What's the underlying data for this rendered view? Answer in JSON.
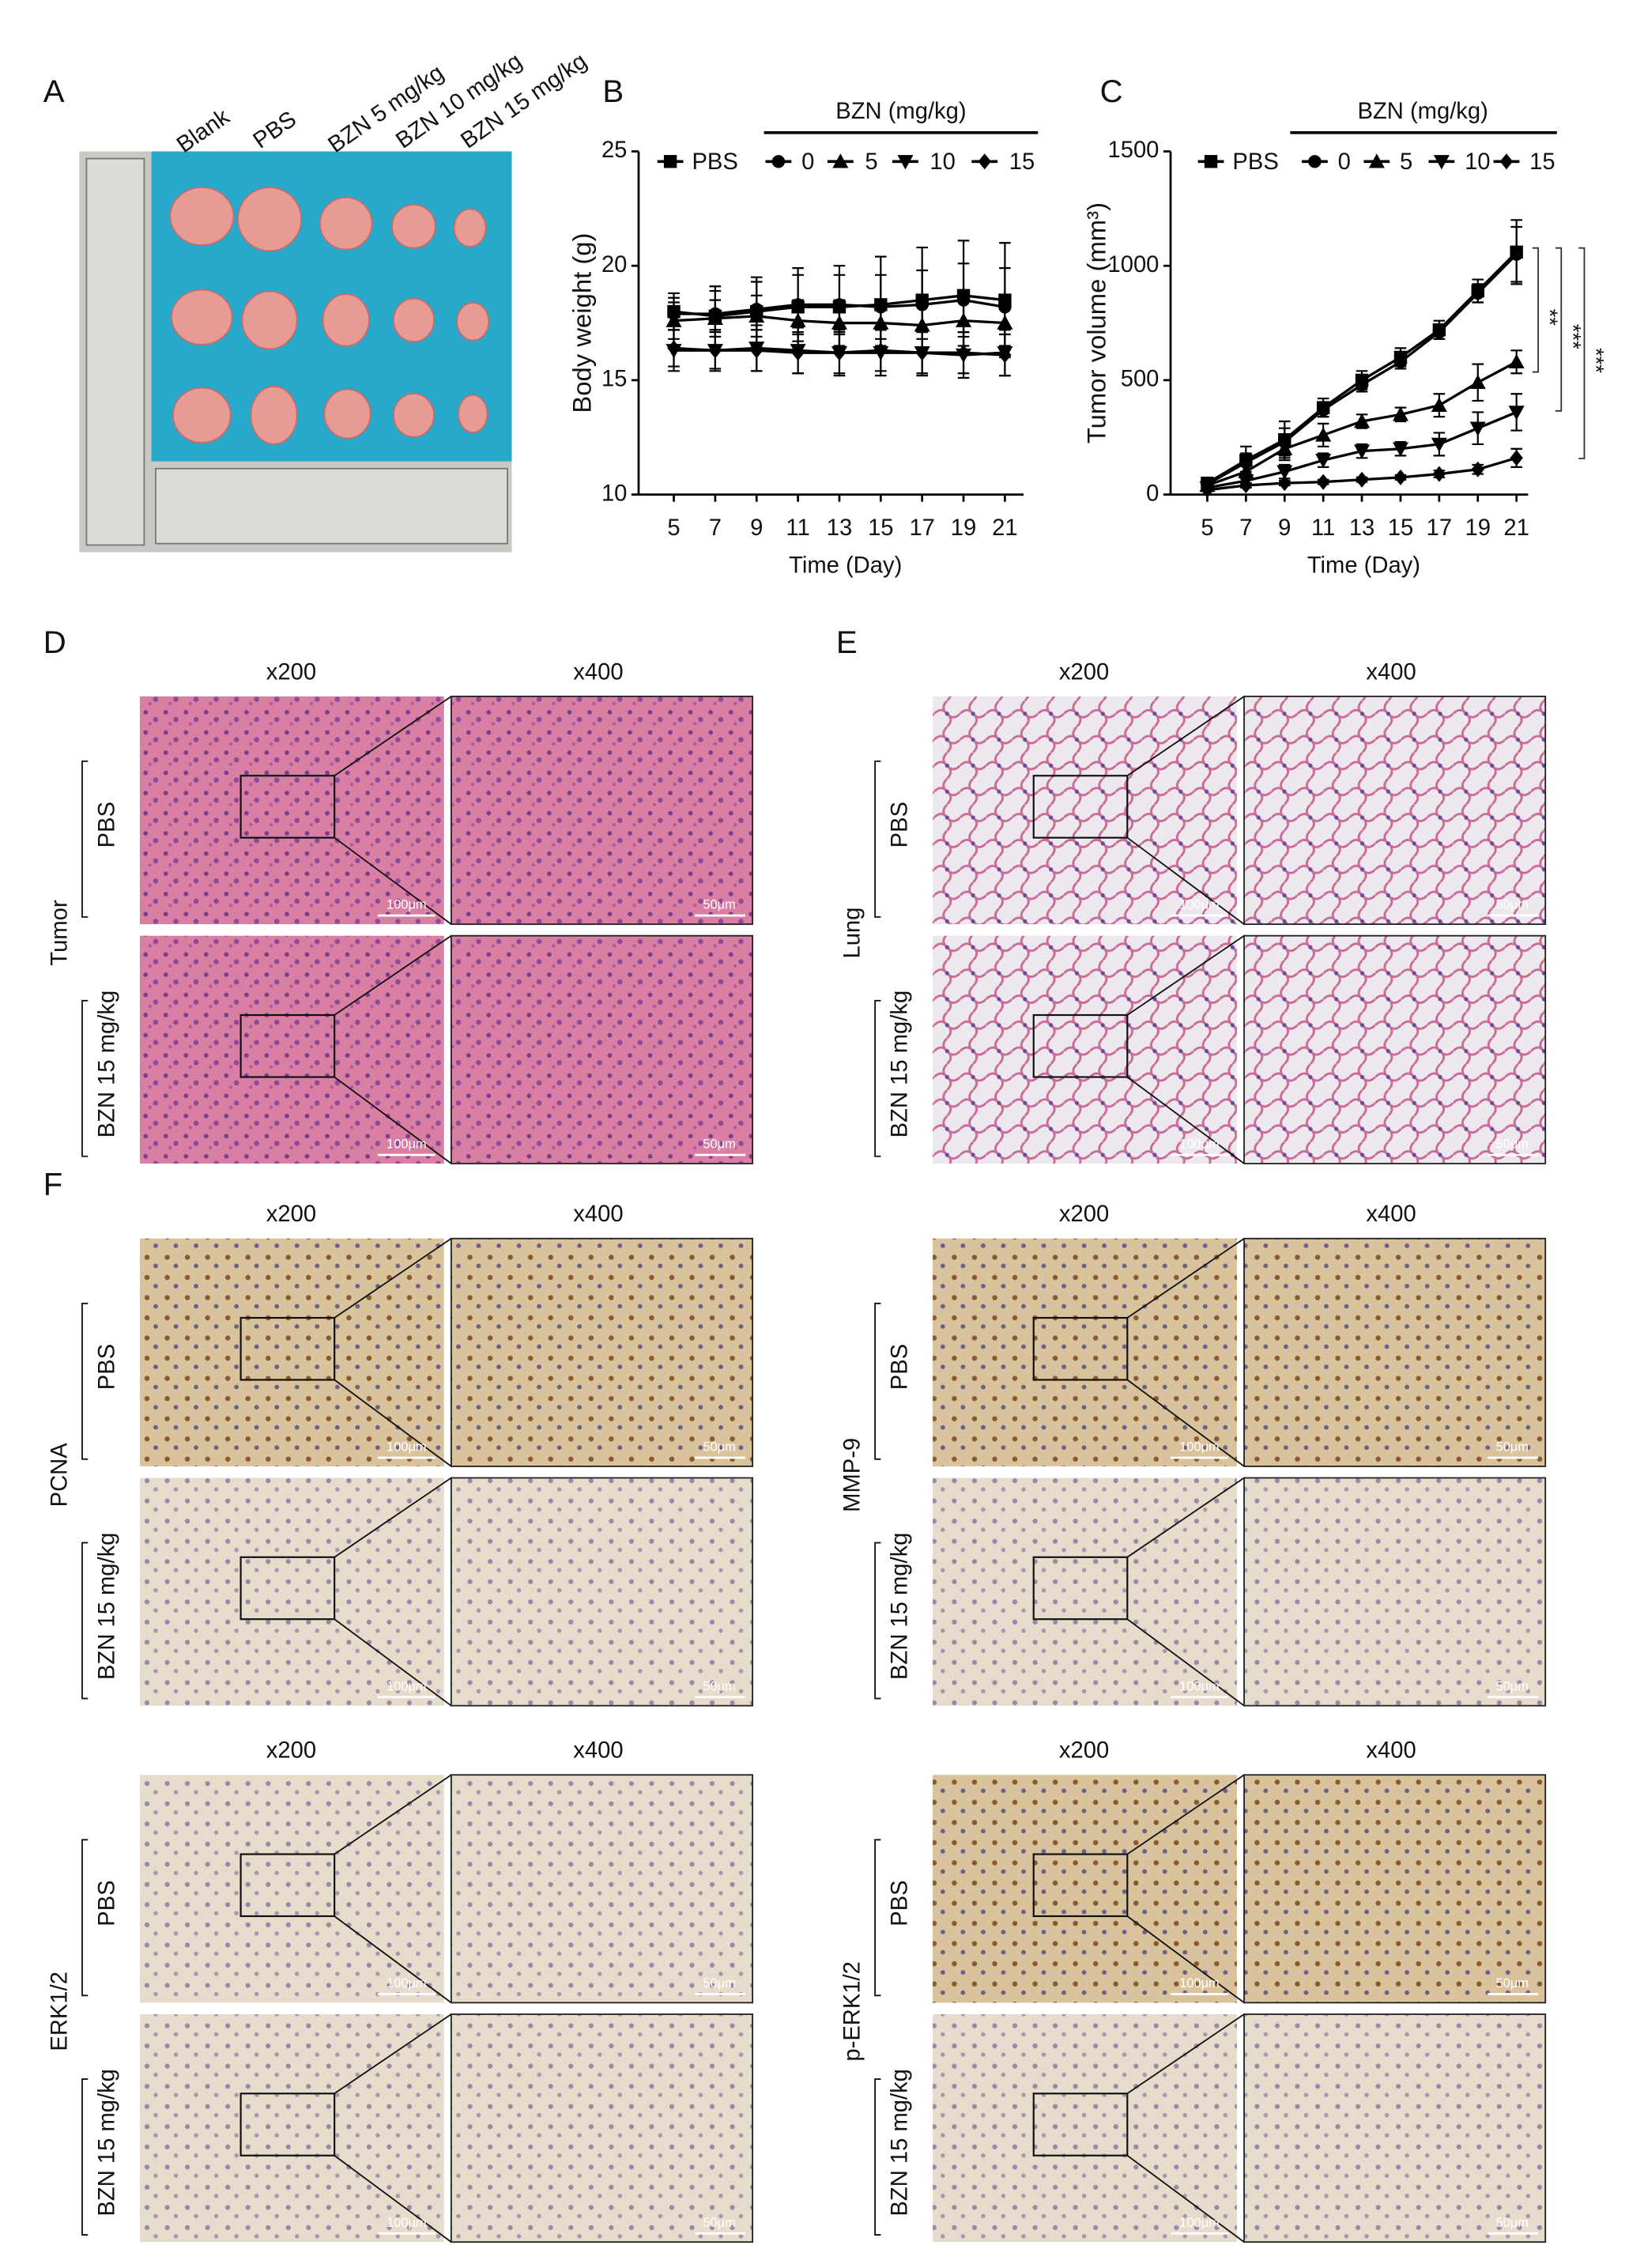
{
  "panel_a": {
    "panel_label": "A",
    "lanes": [
      "Blank",
      "PBS",
      "BZN 5 mg/kg",
      "BZN 10 mg/kg",
      "BZN 15 mg/kg"
    ]
  },
  "chart_data": [
    {
      "type": "line",
      "panel_label": "B",
      "annotation": "BZN (mg/kg)",
      "x_label": "Time (Day)",
      "y_label": "Body weight (g)",
      "x": [
        5,
        7,
        9,
        11,
        13,
        15,
        17,
        19,
        21
      ],
      "xlim": [
        3.3,
        21.9
      ],
      "xticks": [
        5,
        7,
        9,
        11,
        13,
        15,
        17,
        19,
        21
      ],
      "ylim": [
        10,
        25
      ],
      "yticks": [
        10,
        15,
        20,
        25
      ],
      "series": [
        {
          "name": "PBS",
          "marker": "square",
          "color": "#000000",
          "values": [
            18.0,
            17.8,
            18.0,
            18.2,
            18.2,
            18.3,
            18.5,
            18.7,
            18.5
          ],
          "errors": [
            0.8,
            1.3,
            1.5,
            1.7,
            1.8,
            2.1,
            2.3,
            2.4,
            2.5
          ]
        },
        {
          "name": "0",
          "marker": "circle",
          "color": "#000000",
          "values": [
            17.9,
            17.9,
            18.1,
            18.3,
            18.3,
            18.2,
            18.3,
            18.5,
            18.2
          ],
          "errors": [
            0.7,
            1.0,
            1.2,
            1.3,
            1.3,
            1.4,
            1.5,
            1.6,
            1.7
          ]
        },
        {
          "name": "5",
          "marker": "triangle-up",
          "color": "#000000",
          "values": [
            17.6,
            17.7,
            17.8,
            17.6,
            17.5,
            17.5,
            17.4,
            17.6,
            17.5
          ],
          "errors": [
            0.8,
            0.8,
            0.9,
            0.9,
            1.0,
            1.0,
            1.0,
            1.1,
            1.1
          ]
        },
        {
          "name": "10",
          "marker": "triangle-down",
          "color": "#000000",
          "values": [
            16.3,
            16.3,
            16.4,
            16.3,
            16.2,
            16.2,
            16.2,
            16.1,
            16.2
          ],
          "errors": [
            0.9,
            0.9,
            1.0,
            1.0,
            1.0,
            1.0,
            1.0,
            1.0,
            1.0
          ]
        },
        {
          "name": "15",
          "marker": "diamond",
          "color": "#000000",
          "values": [
            16.4,
            16.3,
            16.3,
            16.2,
            16.2,
            16.3,
            16.2,
            16.2,
            16.1
          ],
          "errors": [
            0.8,
            0.8,
            0.9,
            0.9,
            0.9,
            0.9,
            0.9,
            0.9,
            0.9
          ]
        }
      ]
    },
    {
      "type": "line",
      "panel_label": "C",
      "annotation": "BZN (mg/kg)",
      "x_label": "Time (Day)",
      "y_label": "Tumor volume (mm³)",
      "x": [
        5,
        7,
        9,
        11,
        13,
        15,
        17,
        19,
        21
      ],
      "xlim": [
        3.1,
        21.6
      ],
      "xticks": [
        5,
        7,
        9,
        11,
        13,
        15,
        17,
        19,
        21
      ],
      "ylim": [
        0,
        1500
      ],
      "yticks": [
        0,
        500,
        1000,
        1500
      ],
      "significance": [
        "**",
        "***",
        "***"
      ],
      "series": [
        {
          "name": "PBS",
          "marker": "square",
          "color": "#000000",
          "values": [
            50,
            150,
            240,
            380,
            500,
            600,
            720,
            890,
            1060
          ],
          "errors": [
            10,
            60,
            80,
            40,
            40,
            40,
            40,
            50,
            140
          ]
        },
        {
          "name": "0",
          "marker": "circle",
          "color": "#000000",
          "values": [
            45,
            140,
            230,
            370,
            480,
            580,
            710,
            880,
            1050
          ],
          "errors": [
            10,
            40,
            60,
            30,
            30,
            30,
            30,
            40,
            120
          ]
        },
        {
          "name": "5",
          "marker": "triangle-up",
          "color": "#000000",
          "values": [
            40,
            100,
            200,
            260,
            320,
            350,
            390,
            490,
            580
          ],
          "errors": [
            10,
            30,
            50,
            50,
            30,
            30,
            50,
            80,
            50
          ]
        },
        {
          "name": "10",
          "marker": "triangle-down",
          "color": "#000000",
          "values": [
            30,
            60,
            100,
            150,
            190,
            200,
            220,
            290,
            360
          ],
          "errors": [
            10,
            20,
            30,
            30,
            30,
            30,
            50,
            70,
            80
          ]
        },
        {
          "name": "15",
          "marker": "diamond",
          "color": "#000000",
          "values": [
            20,
            40,
            50,
            55,
            65,
            75,
            90,
            110,
            160
          ],
          "errors": [
            5,
            10,
            10,
            10,
            10,
            10,
            15,
            20,
            40
          ]
        }
      ]
    }
  ],
  "histology": [
    {
      "panel_label": "D",
      "column_headers": [
        "x200",
        "x400"
      ],
      "group": "Tumor",
      "rows": [
        {
          "label": "PBS",
          "scale_bars": [
            "100μm",
            "50μm"
          ]
        },
        {
          "label": "BZN 15 mg/kg",
          "scale_bars": [
            "100μm",
            "50μm"
          ]
        }
      ]
    },
    {
      "panel_label": "E",
      "column_headers": [
        "x200",
        "x400"
      ],
      "group": "Lung",
      "rows": [
        {
          "label": "PBS",
          "scale_bars": [
            "100μm",
            "50μm"
          ]
        },
        {
          "label": "BZN 15 mg/kg",
          "scale_bars": [
            "100μm",
            "50μm"
          ]
        }
      ]
    },
    {
      "panel_label": "F",
      "column_headers": [
        "x200",
        "x400"
      ],
      "group": "PCNA",
      "rows": [
        {
          "label": "PBS",
          "scale_bars": [
            "100μm",
            "50μm"
          ]
        },
        {
          "label": "BZN 15 mg/kg",
          "scale_bars": [
            "100μm",
            "50μm"
          ]
        }
      ]
    },
    {
      "column_headers": [
        "x200",
        "x400"
      ],
      "group": "MMP-9",
      "rows": [
        {
          "label": "PBS",
          "scale_bars": [
            "100μm",
            "50μm"
          ]
        },
        {
          "label": "BZN 15 mg/kg",
          "scale_bars": [
            "100μm",
            "50μm"
          ]
        }
      ]
    },
    {
      "column_headers": [
        "x200",
        "x400"
      ],
      "group": "ERK1/2",
      "rows": [
        {
          "label": "PBS",
          "scale_bars": [
            "100μm",
            "50μm"
          ]
        },
        {
          "label": "BZN 15 mg/kg",
          "scale_bars": [
            "100μm",
            "50μm"
          ]
        }
      ]
    },
    {
      "column_headers": [
        "x200",
        "x400"
      ],
      "group": "p-ERK1/2",
      "rows": [
        {
          "label": "PBS",
          "scale_bars": [
            "100μm",
            "50μm"
          ]
        },
        {
          "label": "BZN 15 mg/kg",
          "scale_bars": [
            "100μm",
            "50μm"
          ]
        }
      ]
    }
  ]
}
